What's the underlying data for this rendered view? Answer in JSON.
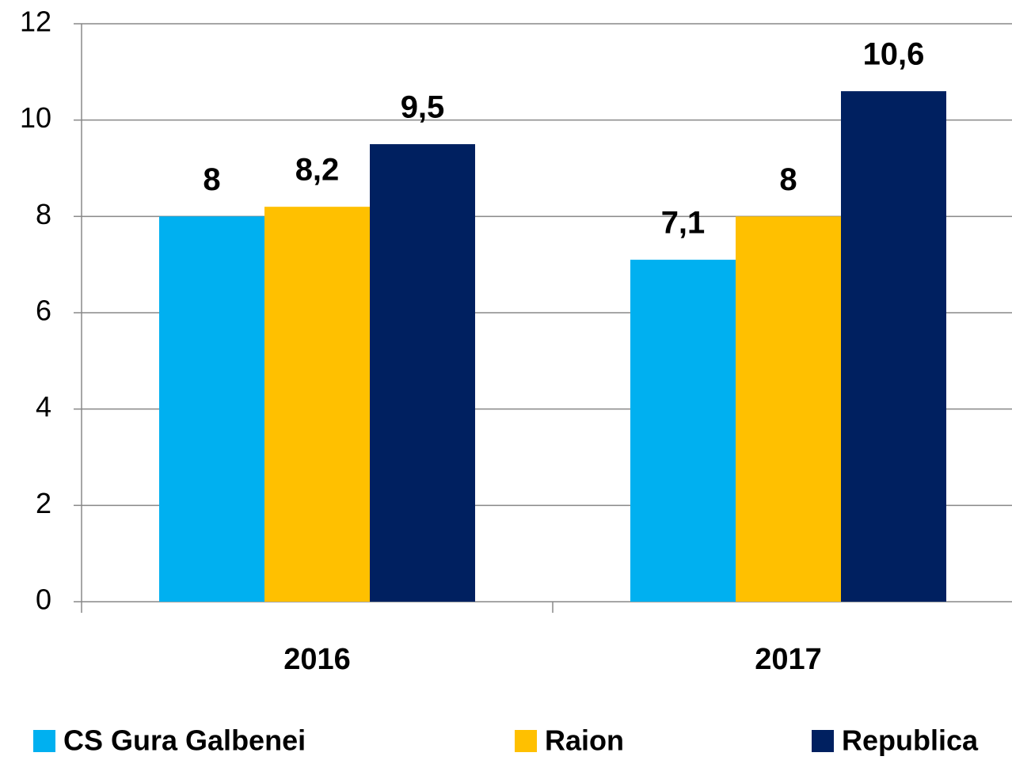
{
  "chart_data": {
    "type": "bar",
    "categories": [
      "2016",
      "2017"
    ],
    "series": [
      {
        "name": "CS Gura Galbenei",
        "color": "#00b0f0",
        "values": [
          8,
          7.1
        ],
        "value_labels": [
          "8",
          "7,1"
        ]
      },
      {
        "name": "Raion",
        "color": "#ffc000",
        "values": [
          8.2,
          8
        ],
        "value_labels": [
          "8,2",
          "8"
        ]
      },
      {
        "name": "Republica",
        "color": "#002060",
        "values": [
          9.5,
          10.6
        ],
        "value_labels": [
          "9,5",
          "10,6"
        ]
      }
    ],
    "ylim": [
      0,
      12
    ],
    "yticks": [
      0,
      2,
      4,
      6,
      8,
      10,
      12
    ],
    "grid": true,
    "legend": "bottom"
  }
}
